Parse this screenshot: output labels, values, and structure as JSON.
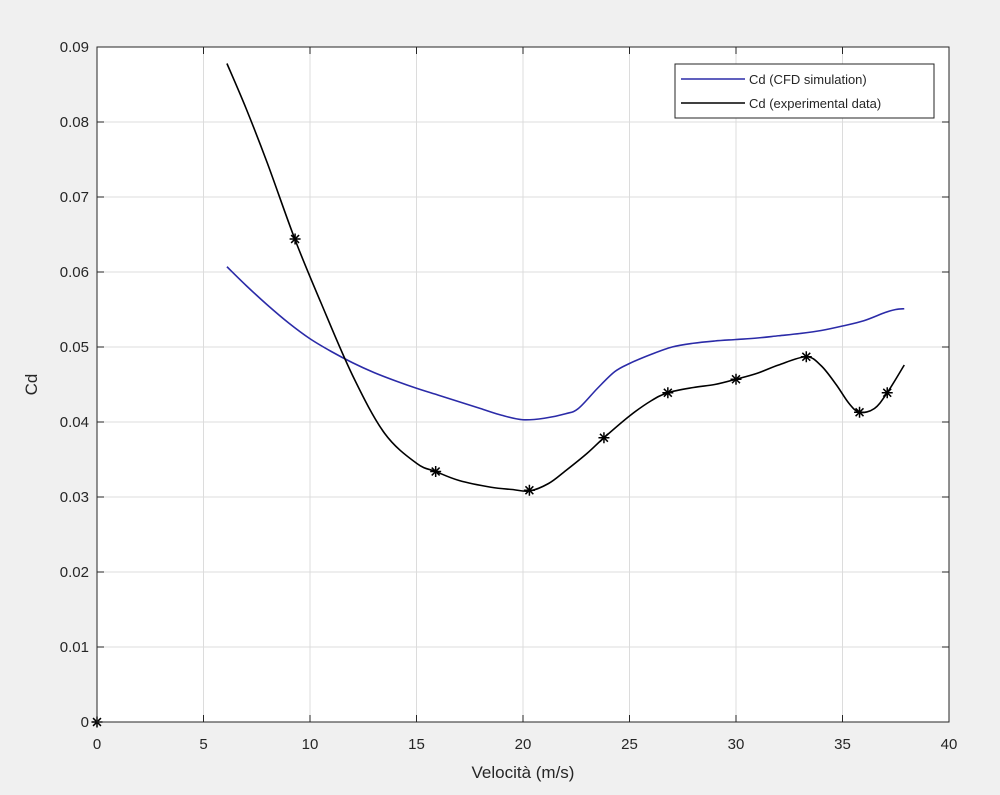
{
  "chart_data": {
    "type": "line",
    "title": "",
    "xlabel": "Velocità (m/s)",
    "ylabel": "Cd",
    "xlim": [
      0,
      40
    ],
    "ylim": [
      0,
      0.09
    ],
    "grid": true,
    "legend_position": "top-right",
    "x_ticks": [
      0,
      5,
      10,
      15,
      20,
      25,
      30,
      35,
      40
    ],
    "x_tick_labels": [
      "0",
      "5",
      "10",
      "15",
      "20",
      "25",
      "30",
      "35",
      "40"
    ],
    "y_ticks": [
      0,
      0.01,
      0.02,
      0.03,
      0.04,
      0.05,
      0.06,
      0.07,
      0.08,
      0.09
    ],
    "y_tick_labels": [
      "0",
      "0.01",
      "0.02",
      "0.03",
      "0.04",
      "0.05",
      "0.06",
      "0.07",
      "0.08",
      "0.09"
    ],
    "series": [
      {
        "name": "Cd (CFD simulation)",
        "color": "#2b2ba8",
        "marker": "none",
        "x": [
          6.1,
          7,
          8,
          9,
          10,
          11,
          12,
          13,
          14,
          15,
          16,
          17,
          18,
          19,
          20,
          21,
          22,
          22.6,
          23.5,
          24.3,
          25,
          26,
          27,
          28,
          29,
          30,
          31,
          32,
          33,
          34,
          35,
          36,
          37,
          37.5,
          37.9
        ],
        "y": [
          0.0607,
          0.0582,
          0.0556,
          0.0532,
          0.0511,
          0.0494,
          0.0479,
          0.0466,
          0.0455,
          0.0445,
          0.0436,
          0.0427,
          0.0418,
          0.0409,
          0.0403,
          0.0405,
          0.0411,
          0.0418,
          0.0445,
          0.0467,
          0.0478,
          0.049,
          0.05,
          0.0505,
          0.0508,
          0.051,
          0.0512,
          0.0515,
          0.0518,
          0.0522,
          0.0528,
          0.0535,
          0.0546,
          0.055,
          0.0551
        ]
      },
      {
        "name": "Cd (experimental data)",
        "color": "#000000",
        "marker": "star",
        "x": [
          6.1,
          7,
          8,
          9.3,
          10.5,
          12,
          13.5,
          15,
          15.9,
          17,
          18.5,
          19.5,
          20.3,
          21.2,
          22,
          23,
          23.8,
          25,
          26,
          26.8,
          28,
          29,
          30,
          31,
          32,
          33.3,
          34,
          34.7,
          35.3,
          35.8,
          36.5,
          37.1,
          37.9
        ],
        "y": [
          0.0878,
          0.0818,
          0.0745,
          0.0643,
          0.056,
          0.0462,
          0.0385,
          0.0345,
          0.0334,
          0.0322,
          0.0313,
          0.031,
          0.0308,
          0.0318,
          0.0335,
          0.0358,
          0.0379,
          0.0408,
          0.0428,
          0.0439,
          0.0446,
          0.045,
          0.0457,
          0.0465,
          0.0476,
          0.0487,
          0.0475,
          0.045,
          0.0425,
          0.0413,
          0.0418,
          0.0439,
          0.0476
        ],
        "marker_points": {
          "x": [
            0,
            9.3,
            15.9,
            20.3,
            23.8,
            26.8,
            30.0,
            33.3,
            35.8,
            37.1
          ],
          "y": [
            0,
            0.0644,
            0.0334,
            0.0309,
            0.0379,
            0.0439,
            0.0457,
            0.0487,
            0.0413,
            0.0439
          ]
        }
      }
    ]
  }
}
